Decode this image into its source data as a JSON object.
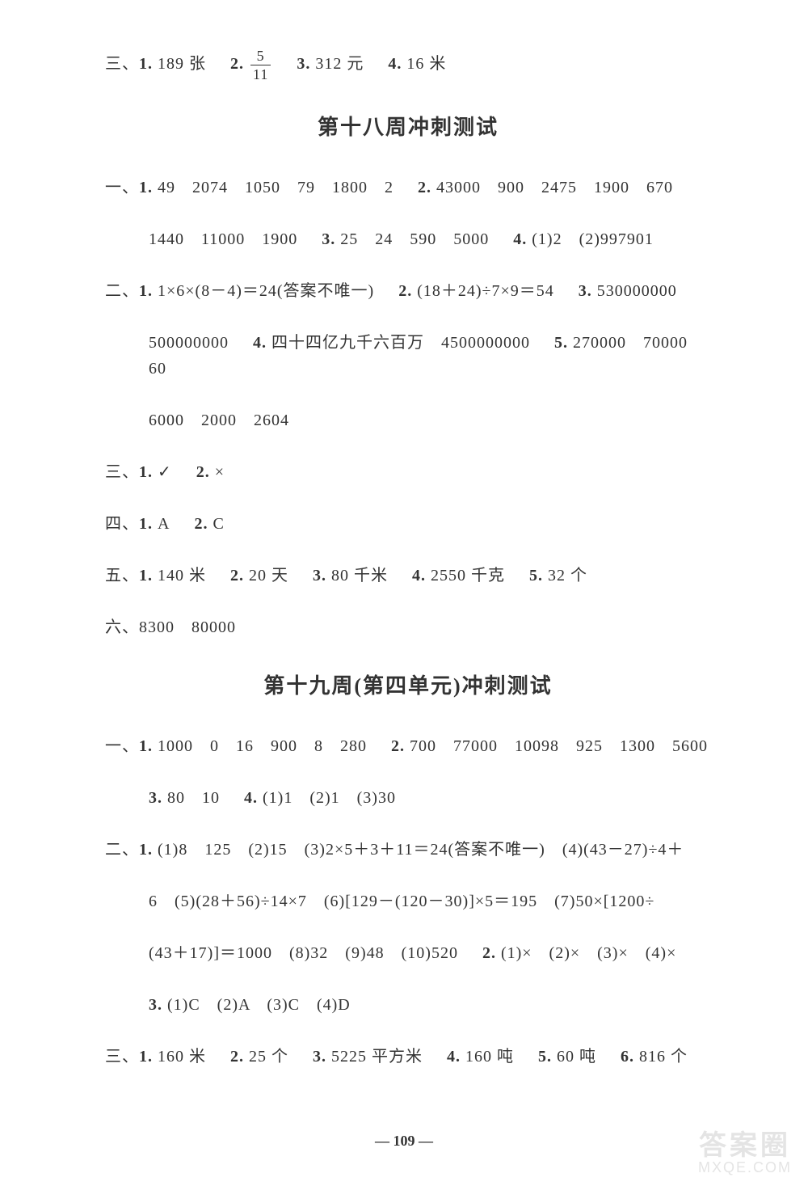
{
  "top": {
    "prefix": "三、",
    "a1b": "1.",
    "a1": "189 张",
    "a2b": "2.",
    "frac_num": "5",
    "frac_den": "11",
    "a3b": "3.",
    "a3": "312 元",
    "a4b": "4.",
    "a4": "16 米"
  },
  "h1": "第十八周冲刺测试",
  "s18": {
    "l1a": "一、",
    "l1_1b": "1.",
    "l1_1": "49　2074　1050　79　1800　2",
    "l1_2b": "2.",
    "l1_2": "43000　900　2475　1900　670",
    "l2": "1440　11000　1900",
    "l2_3b": "3.",
    "l2_3": "25　24　590　5000",
    "l2_4b": "4.",
    "l2_4": "(1)2　(2)997901",
    "l3a": "二、",
    "l3_1b": "1.",
    "l3_1": "1×6×(8－4)＝24(答案不唯一)",
    "l3_2b": "2.",
    "l3_2": "(18＋24)÷7×9＝54",
    "l3_3b": "3.",
    "l3_3": "530000000",
    "l4": "500000000",
    "l4_4b": "4.",
    "l4_4": "四十四亿九千六百万　4500000000",
    "l4_5b": "5.",
    "l4_5": "270000　70000　60",
    "l5": "6000　2000　2604",
    "l6a": "三、",
    "l6_1b": "1.",
    "l6_1": "✓",
    "l6_2b": "2.",
    "l6_2": "×",
    "l7a": "四、",
    "l7_1b": "1.",
    "l7_1": "A",
    "l7_2b": "2.",
    "l7_2": "C",
    "l8a": "五、",
    "l8_1b": "1.",
    "l8_1": "140 米",
    "l8_2b": "2.",
    "l8_2": "20 天",
    "l8_3b": "3.",
    "l8_3": "80 千米",
    "l8_4b": "4.",
    "l8_4": "2550 千克",
    "l8_5b": "5.",
    "l8_5": "32 个",
    "l9a": "六、",
    "l9": "8300　80000"
  },
  "h2": "第十九周(第四单元)冲刺测试",
  "s19": {
    "l1a": "一、",
    "l1_1b": "1.",
    "l1_1": "1000　0　16　900　8　280",
    "l1_2b": "2.",
    "l1_2": "700　77000　10098　925　1300　5600",
    "l2_3b": "3.",
    "l2_3": "80　10",
    "l2_4b": "4.",
    "l2_4": "(1)1　(2)1　(3)30",
    "l3a": "二、",
    "l3_1b": "1.",
    "l3_1": "(1)8　125　(2)15　(3)2×5＋3＋11＝24(答案不唯一)　(4)(43－27)÷4＋",
    "l4": "6　(5)(28＋56)÷14×7　(6)[129－(120－30)]×5＝195　(7)50×[1200÷",
    "l5": "(43＋17)]＝1000　(8)32　(9)48　(10)520",
    "l5_2b": "2.",
    "l5_2": "(1)×　(2)×　(3)×　(4)×",
    "l6_3b": "3.",
    "l6_3": "(1)C　(2)A　(3)C　(4)D",
    "l7a": "三、",
    "l7_1b": "1.",
    "l7_1": "160 米",
    "l7_2b": "2.",
    "l7_2": "25 个",
    "l7_3b": "3.",
    "l7_3": "5225 平方米",
    "l7_4b": "4.",
    "l7_4": "160 吨",
    "l7_5b": "5.",
    "l7_5": "60 吨",
    "l7_6b": "6.",
    "l7_6": "816 个"
  },
  "page_number": "— 109 —",
  "watermark": {
    "top": "答案圈",
    "bottom": "MXQE.COM"
  }
}
